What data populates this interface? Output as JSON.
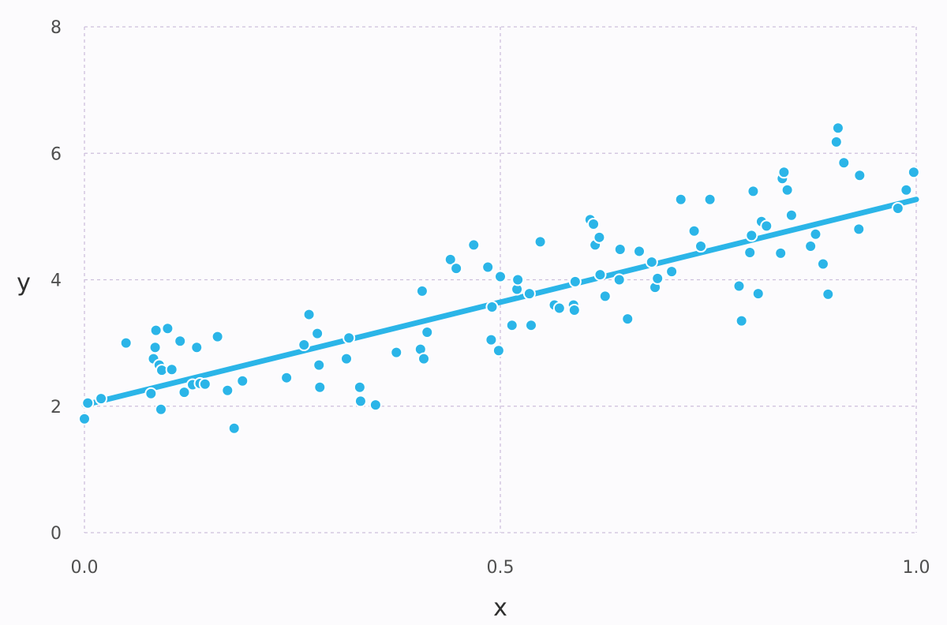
{
  "chart_data": {
    "type": "scatter",
    "title": "",
    "xlabel": "x",
    "ylabel": "y",
    "xlim": [
      0,
      1
    ],
    "ylim": [
      0,
      8
    ],
    "xticks": [
      0,
      0.5,
      1
    ],
    "xtick_labels": [
      "0.0",
      "0.5",
      "1.0"
    ],
    "yticks": [
      0,
      2,
      4,
      6,
      8
    ],
    "ytick_labels": [
      "0",
      "2",
      "4",
      "6",
      "8"
    ],
    "grid": true,
    "legend": "none",
    "colors": {
      "points": "#2bb5e8",
      "line": "#2bb5e8",
      "grid": "#cdbfdc",
      "background": "#fcfbfd"
    },
    "series": [
      {
        "type": "scatter",
        "x": [
          0.0,
          0.004,
          0.02,
          0.05,
          0.08,
          0.083,
          0.085,
          0.086,
          0.09,
          0.092,
          0.093,
          0.1,
          0.105,
          0.115,
          0.12,
          0.13,
          0.135,
          0.139,
          0.145,
          0.16,
          0.172,
          0.18,
          0.19,
          0.243,
          0.264,
          0.27,
          0.28,
          0.282,
          0.283,
          0.315,
          0.318,
          0.331,
          0.332,
          0.35,
          0.375,
          0.404,
          0.406,
          0.408,
          0.412,
          0.44,
          0.447,
          0.468,
          0.485,
          0.489,
          0.49,
          0.498,
          0.5,
          0.514,
          0.52,
          0.521,
          0.535,
          0.537,
          0.548,
          0.565,
          0.571,
          0.588,
          0.589,
          0.59,
          0.608,
          0.612,
          0.614,
          0.619,
          0.62,
          0.626,
          0.643,
          0.644,
          0.653,
          0.667,
          0.682,
          0.686,
          0.689,
          0.706,
          0.717,
          0.733,
          0.741,
          0.752,
          0.787,
          0.79,
          0.8,
          0.802,
          0.804,
          0.81,
          0.814,
          0.82,
          0.837,
          0.839,
          0.841,
          0.845,
          0.85,
          0.873,
          0.879,
          0.888,
          0.894,
          0.904,
          0.906,
          0.913,
          0.931,
          0.932,
          0.978,
          0.988,
          0.997
        ],
        "y": [
          1.8,
          2.05,
          2.12,
          3.0,
          2.2,
          2.75,
          2.93,
          3.2,
          2.65,
          1.95,
          2.57,
          3.23,
          2.58,
          3.03,
          2.22,
          2.34,
          2.93,
          2.36,
          2.35,
          3.1,
          2.25,
          1.65,
          2.4,
          2.45,
          2.97,
          3.45,
          3.15,
          2.65,
          2.3,
          2.75,
          3.08,
          2.3,
          2.08,
          2.02,
          2.85,
          2.9,
          3.82,
          2.75,
          3.17,
          4.32,
          4.18,
          4.55,
          4.2,
          3.05,
          3.57,
          2.88,
          4.05,
          3.28,
          3.85,
          4.0,
          3.78,
          3.28,
          4.6,
          3.6,
          3.55,
          3.6,
          3.52,
          3.97,
          4.95,
          4.88,
          4.55,
          4.67,
          4.08,
          3.74,
          4.0,
          4.48,
          3.38,
          4.45,
          4.28,
          3.88,
          4.02,
          4.13,
          5.27,
          4.77,
          4.53,
          5.27,
          3.9,
          3.35,
          4.43,
          4.7,
          5.4,
          3.78,
          4.92,
          4.85,
          4.42,
          5.6,
          5.7,
          5.42,
          5.02,
          4.53,
          4.72,
          4.25,
          3.77,
          6.18,
          6.4,
          5.85,
          4.8,
          5.65,
          5.13,
          5.42,
          5.7
        ]
      },
      {
        "type": "line",
        "x": [
          0.0,
          1.0
        ],
        "y": [
          2.02,
          5.27
        ]
      }
    ]
  }
}
